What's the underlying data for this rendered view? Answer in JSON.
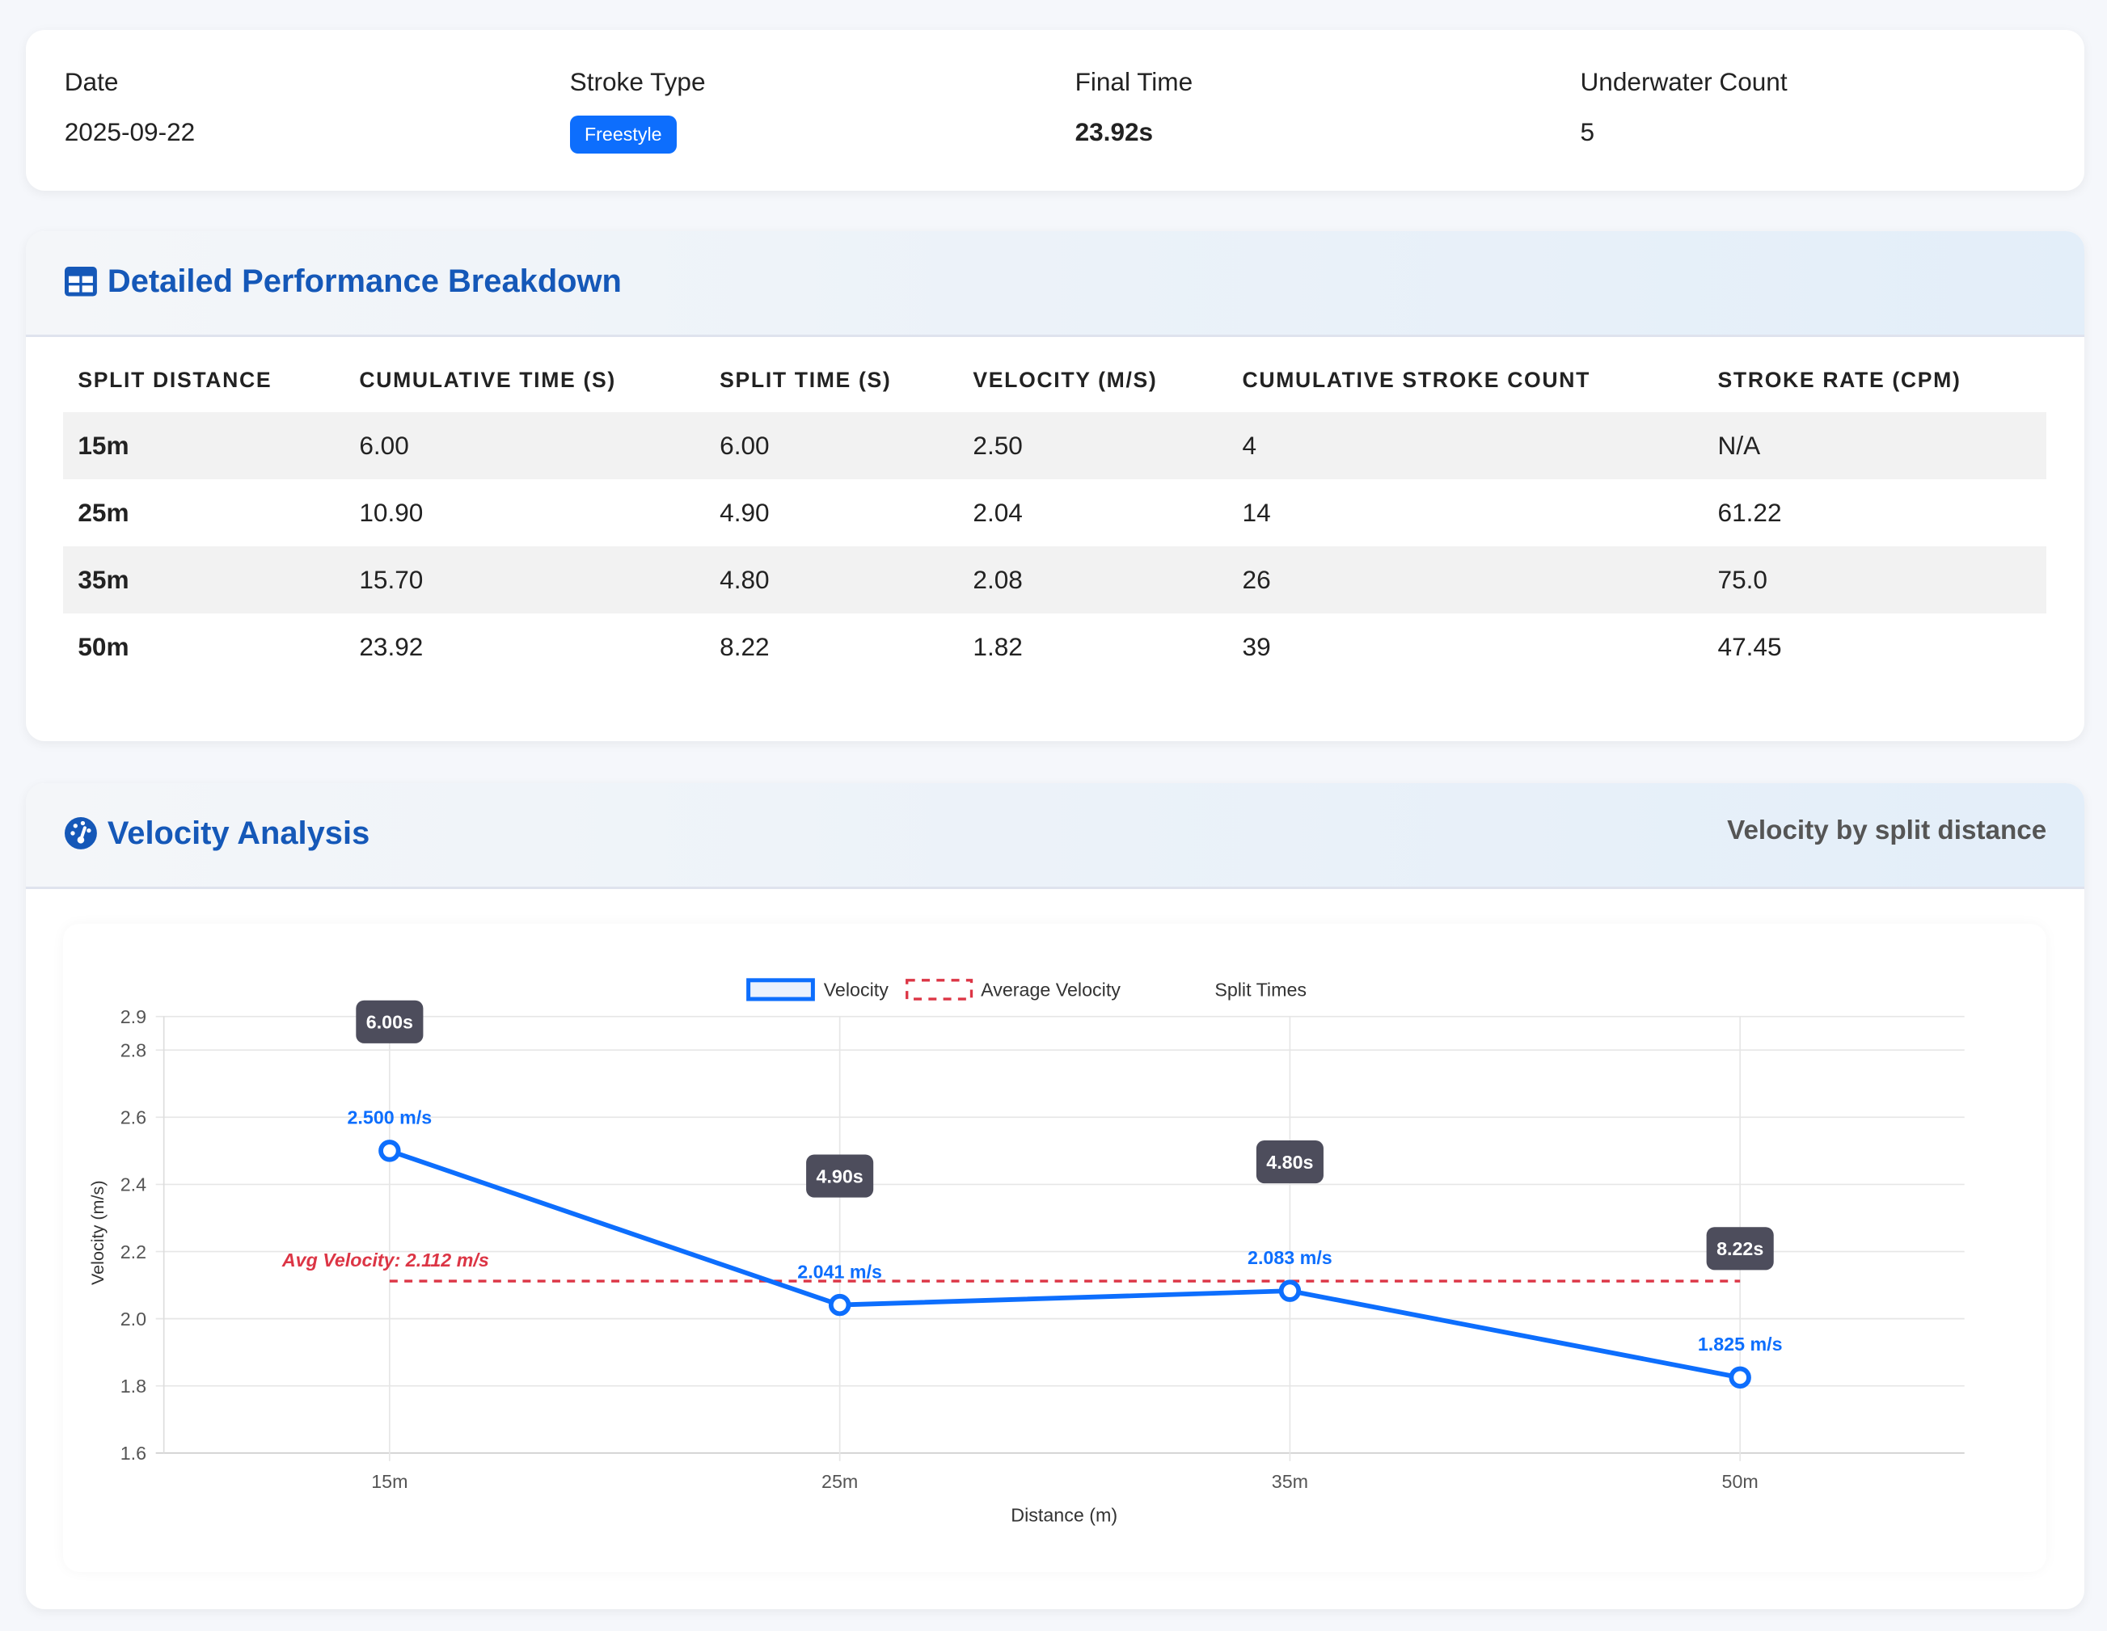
{
  "summary": {
    "date_label": "Date",
    "date": "2025-09-22",
    "stroke_label": "Stroke Type",
    "stroke": "Freestyle",
    "final_label": "Final Time",
    "final": "23.92s",
    "underwater_label": "Underwater Count",
    "underwater": "5"
  },
  "perf": {
    "title": "Detailed Performance Breakdown",
    "headers": [
      "SPLIT DISTANCE",
      "CUMULATIVE TIME (S)",
      "SPLIT TIME (S)",
      "VELOCITY (M/S)",
      "CUMULATIVE STROKE COUNT",
      "STROKE RATE (CPM)"
    ],
    "rows": [
      [
        "15m",
        "6.00",
        "6.00",
        "2.50",
        "4",
        "N/A"
      ],
      [
        "25m",
        "10.90",
        "4.90",
        "2.04",
        "14",
        "61.22"
      ],
      [
        "35m",
        "15.70",
        "4.80",
        "2.08",
        "26",
        "75.0"
      ],
      [
        "50m",
        "23.92",
        "8.22",
        "1.82",
        "39",
        "47.45"
      ]
    ]
  },
  "velocity": {
    "title": "Velocity Analysis",
    "subtitle": "Velocity by split distance"
  },
  "chart_data": {
    "type": "line",
    "categories": [
      "15m",
      "25m",
      "35m",
      "50m"
    ],
    "series": [
      {
        "name": "Velocity",
        "values": [
          2.5,
          2.041,
          2.083,
          1.825
        ],
        "labels": [
          "2.500 m/s",
          "2.041 m/s",
          "2.083 m/s",
          "1.825 m/s"
        ],
        "color": "#0d6efd"
      }
    ],
    "average": {
      "name": "Average Velocity",
      "value": 2.112,
      "label": "Avg Velocity: 2.112 m/s",
      "color": "#dc3545"
    },
    "split_times": {
      "name": "Split Times",
      "labels": [
        "6.00s",
        "4.90s",
        "4.80s",
        "8.22s"
      ]
    },
    "xlabel": "Distance (m)",
    "ylabel": "Velocity (m/s)",
    "ylim": [
      1.6,
      2.9
    ],
    "yticks": [
      1.6,
      1.8,
      2.0,
      2.2,
      2.4,
      2.6,
      2.8,
      2.9
    ],
    "grid": true,
    "legend": "top-center"
  }
}
